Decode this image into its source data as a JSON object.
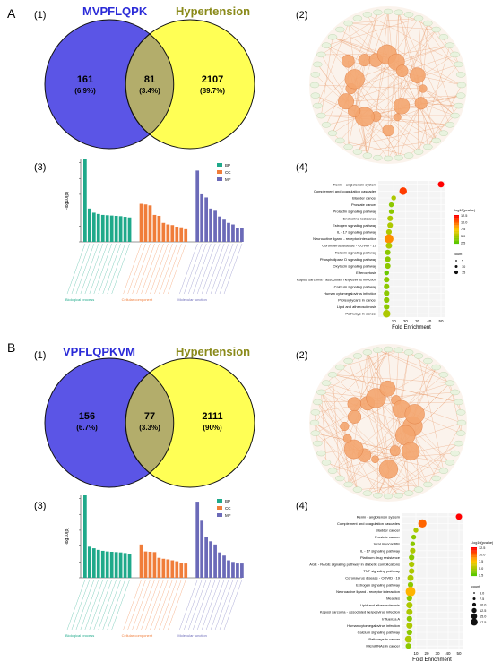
{
  "panels": {
    "A": {
      "letter": "A",
      "sub1": "(1)",
      "sub2": "(2)",
      "sub3": "(3)",
      "sub4": "(4)",
      "venn": {
        "left_label": "MVPFLQPK",
        "right_label": "Hypertension",
        "left_count": "161",
        "left_pct": "(6.9%)",
        "mid_count": "81",
        "mid_pct": "(3.4%)",
        "right_count": "2107",
        "right_pct": "(89.7%)"
      }
    },
    "B": {
      "letter": "B",
      "sub1": "(1)",
      "sub2": "(2)",
      "sub3": "(3)",
      "sub4": "(4)",
      "venn": {
        "left_label": "VPFLQPKVM",
        "right_label": "Hypertension",
        "left_count": "156",
        "left_pct": "(6.7%)",
        "mid_count": "77",
        "mid_pct": "(3.3%)",
        "right_count": "2111",
        "right_pct": "(90%)"
      }
    }
  },
  "colors": {
    "venn_left": "#5b55e6",
    "venn_right": "#ffff55",
    "venn_overlap": "#b3ad6b",
    "bp": "#1fa98a",
    "cc": "#f07d3a",
    "mf": "#6b6ab8",
    "network_node": "#f4a66f",
    "network_edge": "#e89a6a"
  },
  "chart_data": [
    {
      "type": "bar",
      "panel": "A(3)",
      "ylabel": "-log10(p)",
      "ylim": [
        0,
        26
      ],
      "legend": [
        "BP",
        "CC",
        "MF"
      ],
      "legend_placement": "top-right",
      "group_labels": [
        "Biological process",
        "Cellular component",
        "Molecular function"
      ],
      "series": [
        {
          "name": "BP",
          "values": [
            26,
            10.5,
            9.2,
            8.8,
            8.5,
            8.4,
            8.3,
            8.2,
            8.1,
            7.9,
            7.7
          ]
        },
        {
          "name": "CC",
          "values": [
            12,
            11.8,
            11.5,
            8.5,
            8.2,
            6,
            5.5,
            5.3,
            4.8,
            4.6,
            4
          ]
        },
        {
          "name": "MF",
          "values": [
            22.5,
            15,
            14,
            10.5,
            9.8,
            8,
            7,
            6,
            5.5,
            4.5,
            4.5
          ]
        }
      ]
    },
    {
      "type": "scatter",
      "panel": "A(4)",
      "xlabel": "Fold Enrichment",
      "xlim": [
        0,
        50
      ],
      "xticks": [
        10,
        20,
        30,
        40,
        50
      ],
      "colorbar_title": "-log10(pvalue)",
      "colorbar_ticks": [
        "12.5",
        "10.0",
        "7.5",
        "5.0",
        "2.5"
      ],
      "size_title": "count",
      "size_legend": [
        "5",
        "10",
        "15"
      ],
      "categories": [
        "Renin - angiotensin system",
        "Complement and coagulation cascades",
        "Bladder cancer",
        "Prostate cancer",
        "Prolactin signaling pathway",
        "Endocrine resistance",
        "Estrogen signaling pathway",
        "IL - 17 signaling pathway",
        "Neuroactive ligand - receptor interaction",
        "Coronavirus disease - COVID - 19",
        "Relaxin signaling pathway",
        "Phospholipase D signaling pathway",
        "Oxytocin signaling pathway",
        "Efferocytosis",
        "Kaposi sarcoma - associated herpesvirus infection",
        "Calcium signaling pathway",
        "Human cytomegalovirus infection",
        "Proteoglycans in cancer",
        "Lipid and atherosclerosis",
        "Pathways in cancer"
      ],
      "x": [
        50,
        18,
        10,
        8,
        8,
        7,
        7,
        6,
        6,
        6,
        5,
        5,
        5,
        4,
        4,
        4,
        4,
        4,
        4,
        4
      ],
      "count": [
        6,
        8,
        4,
        4,
        4,
        5,
        5,
        5,
        10,
        6,
        5,
        5,
        5,
        4,
        5,
        5,
        5,
        5,
        5,
        8
      ],
      "pvalue_log": [
        12.5,
        11,
        5,
        4,
        4,
        5,
        5,
        5,
        9,
        5,
        4,
        4,
        4,
        3,
        4,
        4,
        4,
        4,
        4,
        5
      ]
    },
    {
      "type": "bar",
      "panel": "B(3)",
      "ylabel": "-log10(p)",
      "ylim": [
        0,
        26
      ],
      "legend": [
        "BP",
        "CC",
        "MF"
      ],
      "legend_placement": "top-right",
      "group_labels": [
        "Biological process",
        "Cellular component",
        "Molecular function"
      ],
      "series": [
        {
          "name": "BP",
          "values": [
            26,
            9.8,
            9.3,
            8.8,
            8.5,
            8.3,
            8.2,
            8.1,
            8.0,
            7.8,
            7.6
          ]
        },
        {
          "name": "CC",
          "values": [
            10.5,
            8.3,
            8.2,
            8.1,
            6.3,
            6,
            5.8,
            5.5,
            5.2,
            4.8,
            4.5
          ]
        },
        {
          "name": "MF",
          "values": [
            24,
            18,
            13,
            11.5,
            10.5,
            8,
            7,
            5.5,
            5,
            4.5,
            4.5
          ]
        }
      ]
    },
    {
      "type": "scatter",
      "panel": "B(4)",
      "xlabel": "Fold Enrichment",
      "xlim": [
        0,
        50
      ],
      "xticks": [
        10,
        20,
        30,
        40,
        50
      ],
      "colorbar_title": "-log10(pvalue)",
      "colorbar_ticks": [
        "12.5",
        "10.0",
        "7.5",
        "5.0",
        "2.5"
      ],
      "size_title": "count",
      "size_legend": [
        "5.0",
        "7.5",
        "10.0",
        "12.5",
        "15.0",
        "17.5"
      ],
      "categories": [
        "Renin - angiotensin system",
        "Complement and coagulation cascades",
        "Bladder cancer",
        "Prostate cancer",
        "Viral myocarditis",
        "IL - 17 signaling pathway",
        "Platinum drug resistance",
        "AGE - RAGE signaling pathway in diabetic complications",
        "TNF signaling pathway",
        "Coronavirus disease - COVID - 19",
        "Estrogen signaling pathway",
        "Neuroactive ligand - receptor interaction",
        "Measles",
        "Lipid and atherosclerosis",
        "Kaposi sarcoma - associated herpesvirus infection",
        "Influenza A",
        "Human cytomegalovirus infection",
        "Calcium signaling pathway",
        "Pathways in cancer",
        "MicroRNAs in cancer"
      ],
      "x": [
        50,
        16,
        10,
        8,
        7,
        7,
        6,
        6,
        6,
        5,
        5,
        5,
        4,
        4,
        4,
        4,
        4,
        4,
        3,
        3
      ],
      "count": [
        6,
        9,
        4,
        4,
        4,
        5,
        5,
        5,
        5,
        6,
        5,
        11,
        5,
        6,
        6,
        5,
        6,
        5,
        7,
        5
      ],
      "pvalue_log": [
        12.5,
        10,
        5,
        4,
        4,
        5,
        4,
        5,
        5,
        5,
        4,
        8,
        4,
        5,
        5,
        4,
        5,
        4,
        5,
        4
      ]
    }
  ]
}
